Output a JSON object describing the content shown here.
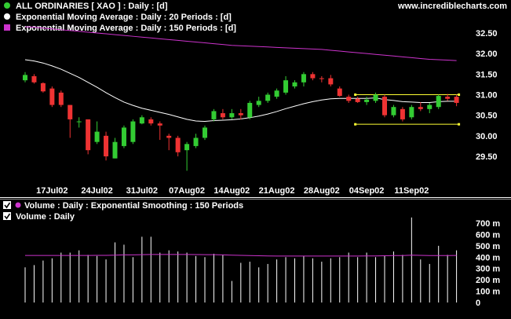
{
  "site": "www.incrediblecharts.com",
  "colors": {
    "background": "#000000",
    "text": "#ffffff",
    "up_candle": "#33cc33",
    "down_candle": "#ee3333",
    "ema20": "#ffffff",
    "ema150": "#cc33cc",
    "trendline": "#ffff33",
    "volume_bar": "#ffffff",
    "volume_ema": "#cc33cc",
    "divider": "#ffffff"
  },
  "price_legend": [
    {
      "icon": "green-circle-icon",
      "color": "#33cc33",
      "text": "ALL ORDINARIES  [ XAO ] : Daily : [d]"
    },
    {
      "icon": "white-circle-icon",
      "color": "#ffffff",
      "text": "Exponential Moving Average : Daily : 20 Periods : [d]"
    },
    {
      "icon": "magenta-square-icon",
      "color": "#cc33cc",
      "text": "Exponential Moving Average : Daily : 150 Periods : [d]"
    }
  ],
  "volume_legend": [
    {
      "icon": "check-icon",
      "color": "#cc33cc",
      "text": "Volume : Daily : Exponential Smoothing  : 150 Periods"
    },
    {
      "icon": "check-icon",
      "color": "#ffffff",
      "text": "Volume : Daily"
    }
  ],
  "chart_data": [
    {
      "type": "candlestick",
      "title": "ALL ORDINARIES  [ XAO ] : Daily : [d]",
      "ylim": [
        29.2,
        32.7
      ],
      "y_ticks": [
        "32.50",
        "32.00",
        "31.50",
        "31.00",
        "30.50",
        "30.00",
        "29.50"
      ],
      "x_labels": [
        "17Jul02",
        "24Jul02",
        "31Jul02",
        "07Aug02",
        "14Aug02",
        "21Aug02",
        "28Aug02",
        "04Sep02",
        "11Sep02"
      ],
      "x_label_index": [
        3,
        8,
        13,
        18,
        23,
        28,
        33,
        38,
        43
      ],
      "candles": [
        {
          "o": 31.35,
          "h": 31.55,
          "l": 31.3,
          "c": 31.48
        },
        {
          "o": 31.45,
          "h": 31.5,
          "l": 31.27,
          "c": 31.3
        },
        {
          "o": 31.28,
          "h": 31.3,
          "l": 31.05,
          "c": 31.08
        },
        {
          "o": 31.15,
          "h": 31.2,
          "l": 30.7,
          "c": 30.75
        },
        {
          "o": 31.05,
          "h": 31.1,
          "l": 30.7,
          "c": 30.75
        },
        {
          "o": 30.75,
          "h": 30.75,
          "l": 29.95,
          "c": 30.4
        },
        {
          "o": 30.35,
          "h": 30.45,
          "l": 30.2,
          "c": 30.35
        },
        {
          "o": 30.4,
          "h": 30.4,
          "l": 29.55,
          "c": 29.65
        },
        {
          "o": 29.85,
          "h": 30.35,
          "l": 29.8,
          "c": 30.1
        },
        {
          "o": 30.0,
          "h": 30.1,
          "l": 29.4,
          "c": 29.5
        },
        {
          "o": 29.45,
          "h": 29.95,
          "l": 29.45,
          "c": 29.85
        },
        {
          "o": 29.75,
          "h": 30.25,
          "l": 29.7,
          "c": 30.2
        },
        {
          "o": 29.85,
          "h": 30.4,
          "l": 29.8,
          "c": 30.35
        },
        {
          "o": 30.3,
          "h": 30.5,
          "l": 30.28,
          "c": 30.45
        },
        {
          "o": 30.4,
          "h": 30.45,
          "l": 30.25,
          "c": 30.3
        },
        {
          "o": 30.3,
          "h": 30.35,
          "l": 29.9,
          "c": 30.25
        },
        {
          "o": 30.0,
          "h": 30.05,
          "l": 29.65,
          "c": 29.95
        },
        {
          "o": 29.95,
          "h": 30.0,
          "l": 29.5,
          "c": 29.6
        },
        {
          "o": 29.65,
          "h": 29.85,
          "l": 29.15,
          "c": 29.8
        },
        {
          "o": 29.75,
          "h": 30.05,
          "l": 29.7,
          "c": 29.95
        },
        {
          "o": 29.95,
          "h": 30.25,
          "l": 29.9,
          "c": 30.2
        },
        {
          "o": 30.4,
          "h": 30.65,
          "l": 30.35,
          "c": 30.6
        },
        {
          "o": 30.55,
          "h": 30.65,
          "l": 30.4,
          "c": 30.45
        },
        {
          "o": 30.45,
          "h": 30.65,
          "l": 30.4,
          "c": 30.55
        },
        {
          "o": 30.55,
          "h": 30.65,
          "l": 30.4,
          "c": 30.5
        },
        {
          "o": 30.45,
          "h": 30.85,
          "l": 30.4,
          "c": 30.8
        },
        {
          "o": 30.75,
          "h": 30.95,
          "l": 30.7,
          "c": 30.85
        },
        {
          "o": 30.85,
          "h": 31.05,
          "l": 30.8,
          "c": 31.0
        },
        {
          "o": 30.95,
          "h": 31.15,
          "l": 30.9,
          "c": 31.1
        },
        {
          "o": 31.05,
          "h": 31.45,
          "l": 31.0,
          "c": 31.35
        },
        {
          "o": 31.2,
          "h": 31.35,
          "l": 31.15,
          "c": 31.3
        },
        {
          "o": 31.3,
          "h": 31.55,
          "l": 31.2,
          "c": 31.5
        },
        {
          "o": 31.5,
          "h": 31.55,
          "l": 31.35,
          "c": 31.4
        },
        {
          "o": 31.4,
          "h": 31.45,
          "l": 31.3,
          "c": 31.38
        },
        {
          "o": 31.4,
          "h": 31.48,
          "l": 31.2,
          "c": 31.25
        },
        {
          "o": 31.15,
          "h": 31.2,
          "l": 30.95,
          "c": 30.97
        },
        {
          "o": 30.95,
          "h": 31.0,
          "l": 30.8,
          "c": 30.85
        },
        {
          "o": 30.9,
          "h": 30.95,
          "l": 30.8,
          "c": 30.82
        },
        {
          "o": 30.82,
          "h": 30.95,
          "l": 30.75,
          "c": 30.88
        },
        {
          "o": 30.85,
          "h": 31.05,
          "l": 30.8,
          "c": 31.0
        },
        {
          "o": 30.95,
          "h": 31.0,
          "l": 30.45,
          "c": 30.5
        },
        {
          "o": 30.5,
          "h": 30.75,
          "l": 30.45,
          "c": 30.7
        },
        {
          "o": 30.65,
          "h": 30.7,
          "l": 30.35,
          "c": 30.4
        },
        {
          "o": 30.45,
          "h": 30.75,
          "l": 30.4,
          "c": 30.7
        },
        {
          "o": 30.7,
          "h": 30.82,
          "l": 30.6,
          "c": 30.65
        },
        {
          "o": 30.65,
          "h": 30.8,
          "l": 30.55,
          "c": 30.75
        },
        {
          "o": 30.7,
          "h": 31.0,
          "l": 30.65,
          "c": 30.97
        },
        {
          "o": 30.95,
          "h": 31.02,
          "l": 30.85,
          "c": 30.9
        },
        {
          "o": 30.95,
          "h": 31.0,
          "l": 30.72,
          "c": 30.8
        }
      ],
      "ema20": [
        31.85,
        31.82,
        31.77,
        31.7,
        31.62,
        31.52,
        31.42,
        31.3,
        31.18,
        31.05,
        30.93,
        30.82,
        30.74,
        30.67,
        30.62,
        30.57,
        30.52,
        30.46,
        30.4,
        30.36,
        30.35,
        30.37,
        30.38,
        30.39,
        30.41,
        30.44,
        30.48,
        30.53,
        30.59,
        30.66,
        30.72,
        30.78,
        30.83,
        30.87,
        30.9,
        30.91,
        30.91,
        30.91,
        30.91,
        30.92,
        30.88,
        30.86,
        30.83,
        30.82,
        30.81,
        30.81,
        30.83,
        30.84,
        30.84
      ],
      "ema150": [
        32.65,
        32.64,
        32.62,
        32.6,
        32.58,
        32.56,
        32.54,
        32.52,
        32.5,
        32.48,
        32.46,
        32.44,
        32.42,
        32.4,
        32.38,
        32.36,
        32.34,
        32.32,
        32.3,
        32.28,
        32.26,
        32.24,
        32.22,
        32.2,
        32.19,
        32.18,
        32.17,
        32.16,
        32.15,
        32.14,
        32.13,
        32.12,
        32.11,
        32.1,
        32.08,
        32.06,
        32.04,
        32.02,
        32.0,
        31.98,
        31.96,
        31.94,
        31.92,
        31.9,
        31.88,
        31.86,
        31.85,
        31.84,
        31.83
      ],
      "trendlines": [
        {
          "from_index": 37,
          "to_index": 48,
          "value": 31.0
        },
        {
          "from_index": 37,
          "to_index": 48,
          "value": 30.28
        }
      ]
    },
    {
      "type": "bar",
      "title": "Volume : Daily",
      "ylim": [
        0,
        800
      ],
      "y_ticks": [
        "700 m",
        "600 m",
        "500 m",
        "400 m",
        "300 m",
        "200 m",
        "100 m",
        "0"
      ],
      "values": [
        310,
        330,
        370,
        390,
        440,
        440,
        460,
        420,
        410,
        380,
        530,
        510,
        400,
        580,
        580,
        440,
        460,
        450,
        440,
        410,
        400,
        430,
        420,
        190,
        350,
        360,
        310,
        340,
        380,
        400,
        390,
        410,
        390,
        360,
        390,
        400,
        440,
        400,
        440,
        400,
        410,
        450,
        420,
        750,
        380,
        340,
        500,
        420,
        460
      ],
      "ema": [
        415,
        415,
        415,
        415,
        415,
        415,
        415,
        415,
        416,
        416,
        418,
        420,
        420,
        422,
        424,
        424,
        424,
        424,
        424,
        423,
        422,
        422,
        420,
        418,
        416,
        414,
        412,
        411,
        410,
        410,
        410,
        410,
        410,
        410,
        410,
        410,
        410,
        410,
        411,
        411,
        412,
        414,
        414,
        418,
        416,
        414,
        414,
        414,
        415
      ]
    }
  ]
}
